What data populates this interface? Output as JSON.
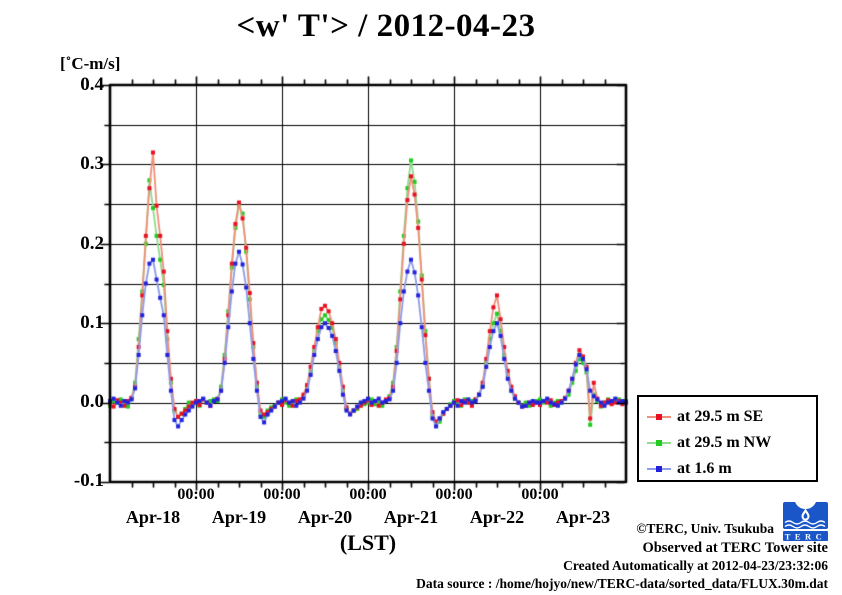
{
  "title": "<w' T'> / 2012-04-23",
  "axes": {
    "y_unit_label": "[˚C-m/s]",
    "x_axis_label": "(LST)",
    "y_tick_labels": [
      "0.4",
      "0.3",
      "0.2",
      "0.1",
      "0.0",
      "-0.1"
    ],
    "x_time_labels": [
      "00:00",
      "00:00",
      "00:00",
      "00:00",
      "00:00"
    ],
    "x_date_labels": [
      "Apr-18",
      "Apr-19",
      "Apr-20",
      "Apr-21",
      "Apr-22",
      "Apr-23"
    ]
  },
  "legend": {
    "items": [
      {
        "label": "at 29.5 m SE",
        "marker_color": "#e81123",
        "line_color": "#f0907a"
      },
      {
        "label": "at 29.5 m NW",
        "marker_color": "#1fcc1f",
        "line_color": "#8fdc8f"
      },
      {
        "label": "at 1.6 m",
        "marker_color": "#2222dd",
        "line_color": "#8d9bea"
      }
    ]
  },
  "footer": {
    "copyright": "©TERC, Univ. Tsukuba",
    "observed": "Observed at TERC Tower site",
    "created": "Created Automatically at 2012-04-23/23:32:06",
    "data_source": "Data source : /home/hojyo/new/TERC-data/sorted_data/FLUX.30m.dat",
    "logo_text": "TERC",
    "logo_color": "#1a56c8"
  },
  "chart_data": {
    "type": "line",
    "title": "<w' T'> / 2012-04-23",
    "ylabel": "[˚C-m/s]",
    "xlabel": "(LST)",
    "ylim": [
      -0.1,
      0.4
    ],
    "x_unit": "hours since 2012-04-18 00:00 LST",
    "xlim": [
      0,
      144
    ],
    "x_step_hours": 1,
    "y_grid_interval": 0.05,
    "x_grid_interval_hours": 24,
    "x_minor_tick_hours": 6,
    "grid": true,
    "legend_position": "right-bottom-outside",
    "series": [
      {
        "name": "at 29.5 m SE",
        "marker_color": "#e81123",
        "line_color": "#f0907a",
        "values": [
          0.0,
          -0.005,
          0.003,
          0.0,
          -0.004,
          0.002,
          0.006,
          0.02,
          0.07,
          0.135,
          0.21,
          0.27,
          0.315,
          0.248,
          0.21,
          0.165,
          0.09,
          0.03,
          -0.008,
          -0.018,
          -0.014,
          -0.01,
          -0.005,
          0.0,
          0.002,
          -0.003,
          0.004,
          0.0,
          -0.004,
          0.002,
          0.005,
          0.015,
          0.055,
          0.11,
          0.175,
          0.225,
          0.252,
          0.232,
          0.195,
          0.138,
          0.075,
          0.025,
          -0.01,
          -0.015,
          -0.012,
          -0.008,
          -0.005,
          0.0,
          -0.003,
          0.003,
          0.0,
          -0.004,
          0.002,
          0.004,
          0.01,
          0.022,
          0.045,
          0.07,
          0.095,
          0.118,
          0.122,
          0.115,
          0.1,
          0.08,
          0.05,
          0.02,
          -0.006,
          -0.014,
          -0.01,
          -0.006,
          -0.004,
          0.0,
          0.003,
          -0.003,
          0.002,
          -0.004,
          0.0,
          0.004,
          0.006,
          0.02,
          0.065,
          0.13,
          0.2,
          0.255,
          0.285,
          0.262,
          0.22,
          0.155,
          0.085,
          0.03,
          -0.012,
          -0.024,
          -0.02,
          -0.014,
          -0.008,
          -0.004,
          0.0,
          0.003,
          -0.003,
          0.002,
          0.0,
          -0.004,
          0.004,
          0.01,
          0.025,
          0.055,
          0.09,
          0.12,
          0.135,
          0.105,
          0.07,
          0.04,
          0.02,
          0.008,
          0.0,
          -0.005,
          -0.004,
          0.0,
          -0.003,
          0.0,
          -0.003,
          0.002,
          0.0,
          0.003,
          -0.003,
          0.0,
          0.002,
          0.006,
          0.015,
          0.03,
          0.05,
          0.066,
          0.058,
          0.045,
          -0.02,
          0.025,
          0.005,
          -0.004,
          0.0,
          0.003,
          -0.002,
          0.0,
          0.002,
          -0.002,
          0.0
        ]
      },
      {
        "name": "at 29.5 m NW",
        "marker_color": "#1fcc1f",
        "line_color": "#8fdc8f",
        "values": [
          -0.004,
          0.002,
          0.0,
          0.004,
          -0.002,
          -0.005,
          0.005,
          0.025,
          0.08,
          0.14,
          0.2,
          0.28,
          0.245,
          0.21,
          0.18,
          0.148,
          0.08,
          0.025,
          -0.01,
          -0.018,
          -0.014,
          -0.008,
          0.0,
          -0.002,
          0.0,
          -0.004,
          0.004,
          0.0,
          0.002,
          0.004,
          0.002,
          0.02,
          0.06,
          0.115,
          0.17,
          0.22,
          0.248,
          0.238,
          0.19,
          0.13,
          0.07,
          0.02,
          -0.014,
          -0.018,
          -0.01,
          -0.006,
          -0.004,
          0.0,
          0.004,
          0.0,
          -0.004,
          0.0,
          0.004,
          0.002,
          0.008,
          0.02,
          0.04,
          0.065,
          0.09,
          0.105,
          0.11,
          0.104,
          0.094,
          0.075,
          0.045,
          0.015,
          -0.008,
          -0.014,
          -0.01,
          -0.008,
          0.0,
          -0.002,
          0.0,
          0.004,
          -0.002,
          0.0,
          -0.004,
          0.002,
          0.008,
          0.025,
          0.07,
          0.14,
          0.21,
          0.27,
          0.305,
          0.278,
          0.228,
          0.16,
          0.09,
          0.03,
          -0.016,
          -0.028,
          -0.024,
          -0.014,
          -0.008,
          -0.002,
          0.002,
          0.0,
          -0.004,
          0.004,
          0.0,
          0.002,
          0.004,
          0.01,
          0.02,
          0.05,
          0.08,
          0.1,
          0.112,
          0.09,
          0.06,
          0.035,
          0.015,
          0.005,
          0.0,
          -0.004,
          0.0,
          -0.004,
          0.0,
          0.002,
          0.004,
          0.0,
          0.002,
          -0.004,
          0.0,
          0.002,
          0.0,
          0.005,
          0.01,
          0.025,
          0.04,
          0.055,
          0.05,
          0.038,
          -0.028,
          0.01,
          0.002,
          -0.005,
          0.0,
          0.004,
          0.0,
          0.002,
          0.004,
          0.0,
          0.002
        ]
      },
      {
        "name": "at 1.6 m",
        "marker_color": "#2222dd",
        "line_color": "#8d9bea",
        "values": [
          0.002,
          0.005,
          0.0,
          -0.004,
          0.002,
          0.0,
          0.004,
          0.018,
          0.06,
          0.11,
          0.15,
          0.175,
          0.18,
          0.155,
          0.132,
          0.11,
          0.06,
          0.015,
          -0.022,
          -0.03,
          -0.022,
          -0.015,
          -0.01,
          -0.005,
          0.0,
          0.002,
          0.005,
          0.0,
          -0.004,
          0.002,
          0.004,
          0.015,
          0.05,
          0.095,
          0.14,
          0.175,
          0.19,
          0.174,
          0.145,
          0.1,
          0.055,
          0.015,
          -0.018,
          -0.025,
          -0.015,
          -0.01,
          -0.005,
          0.0,
          0.002,
          0.005,
          0.0,
          0.002,
          -0.004,
          0.0,
          0.005,
          0.015,
          0.035,
          0.06,
          0.08,
          0.095,
          0.1,
          0.094,
          0.084,
          0.065,
          0.04,
          0.01,
          -0.01,
          -0.015,
          -0.01,
          -0.005,
          0.0,
          0.002,
          0.005,
          0.0,
          0.002,
          0.005,
          0.0,
          0.002,
          0.004,
          0.015,
          0.05,
          0.1,
          0.14,
          0.165,
          0.18,
          0.164,
          0.135,
          0.095,
          0.05,
          0.015,
          -0.02,
          -0.03,
          -0.02,
          -0.012,
          -0.008,
          -0.004,
          0.0,
          -0.004,
          0.002,
          0.0,
          0.004,
          0.0,
          0.002,
          0.01,
          0.02,
          0.045,
          0.07,
          0.09,
          0.1,
          0.084,
          0.055,
          0.03,
          0.015,
          0.005,
          0.0,
          -0.005,
          -0.004,
          0.0,
          0.002,
          0.0,
          0.0,
          0.002,
          0.005,
          0.0,
          -0.002,
          -0.004,
          0.0,
          0.005,
          0.015,
          0.03,
          0.048,
          0.06,
          0.055,
          0.042,
          0.015,
          0.008,
          0.004,
          0.0,
          -0.004,
          0.0,
          0.002,
          0.005,
          0.0,
          0.002,
          0.0
        ]
      }
    ]
  }
}
